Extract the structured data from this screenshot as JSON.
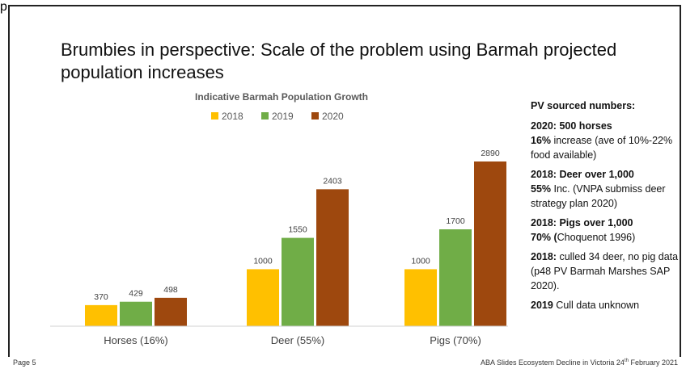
{
  "header": {
    "text": "p"
  },
  "slide": {
    "title": "Brumbies in perspective: Scale of the problem using Barmah projected population increases"
  },
  "chart_data": {
    "type": "bar",
    "title": "Indicative Barmah Population Growth",
    "categories": [
      "Horses (16%)",
      "Deer (55%)",
      "Pigs (70%)"
    ],
    "series": [
      {
        "name": "2018",
        "values": [
          370,
          1000,
          1000
        ],
        "color": "#FFC000"
      },
      {
        "name": "2019",
        "values": [
          429,
          1550,
          1700
        ],
        "color": "#70AD47"
      },
      {
        "name": "2020",
        "values": [
          498,
          2403,
          2890
        ],
        "color": "#9E480E"
      }
    ],
    "ylim": [
      0,
      3200
    ],
    "legend": "top-center",
    "grid": false,
    "data_labels": true
  },
  "notes": {
    "heading": "PV sourced numbers:",
    "items": [
      {
        "bold": "2020: 500 horses",
        "lines": [
          {
            "bold": "16%",
            "text": " increase (ave of 10%-22% food available)"
          }
        ]
      },
      {
        "bold": "2018: Deer over 1,000",
        "lines": [
          {
            "bold": "55%",
            "text": " Inc. (VNPA submiss deer strategy plan 2020)"
          }
        ]
      },
      {
        "bold": "2018: Pigs over 1,000",
        "lines": [
          {
            "bold": "70% (",
            "text": "Choquenot 1996)"
          }
        ]
      },
      {
        "bold": "2018:",
        "lines": [
          {
            "bold": "",
            "text": " culled 34 deer, no pig data (p48 PV Barmah Marshes SAP 2020)."
          }
        ]
      },
      {
        "bold": "2019",
        "lines": [
          {
            "bold": "",
            "text": " Cull data unknown"
          }
        ]
      }
    ]
  },
  "footer": {
    "page": "Page 5",
    "caption": "ABA Slides Ecosystem Decline in Victoria  24",
    "caption_sup": "th",
    "caption_end": " February 2021"
  }
}
